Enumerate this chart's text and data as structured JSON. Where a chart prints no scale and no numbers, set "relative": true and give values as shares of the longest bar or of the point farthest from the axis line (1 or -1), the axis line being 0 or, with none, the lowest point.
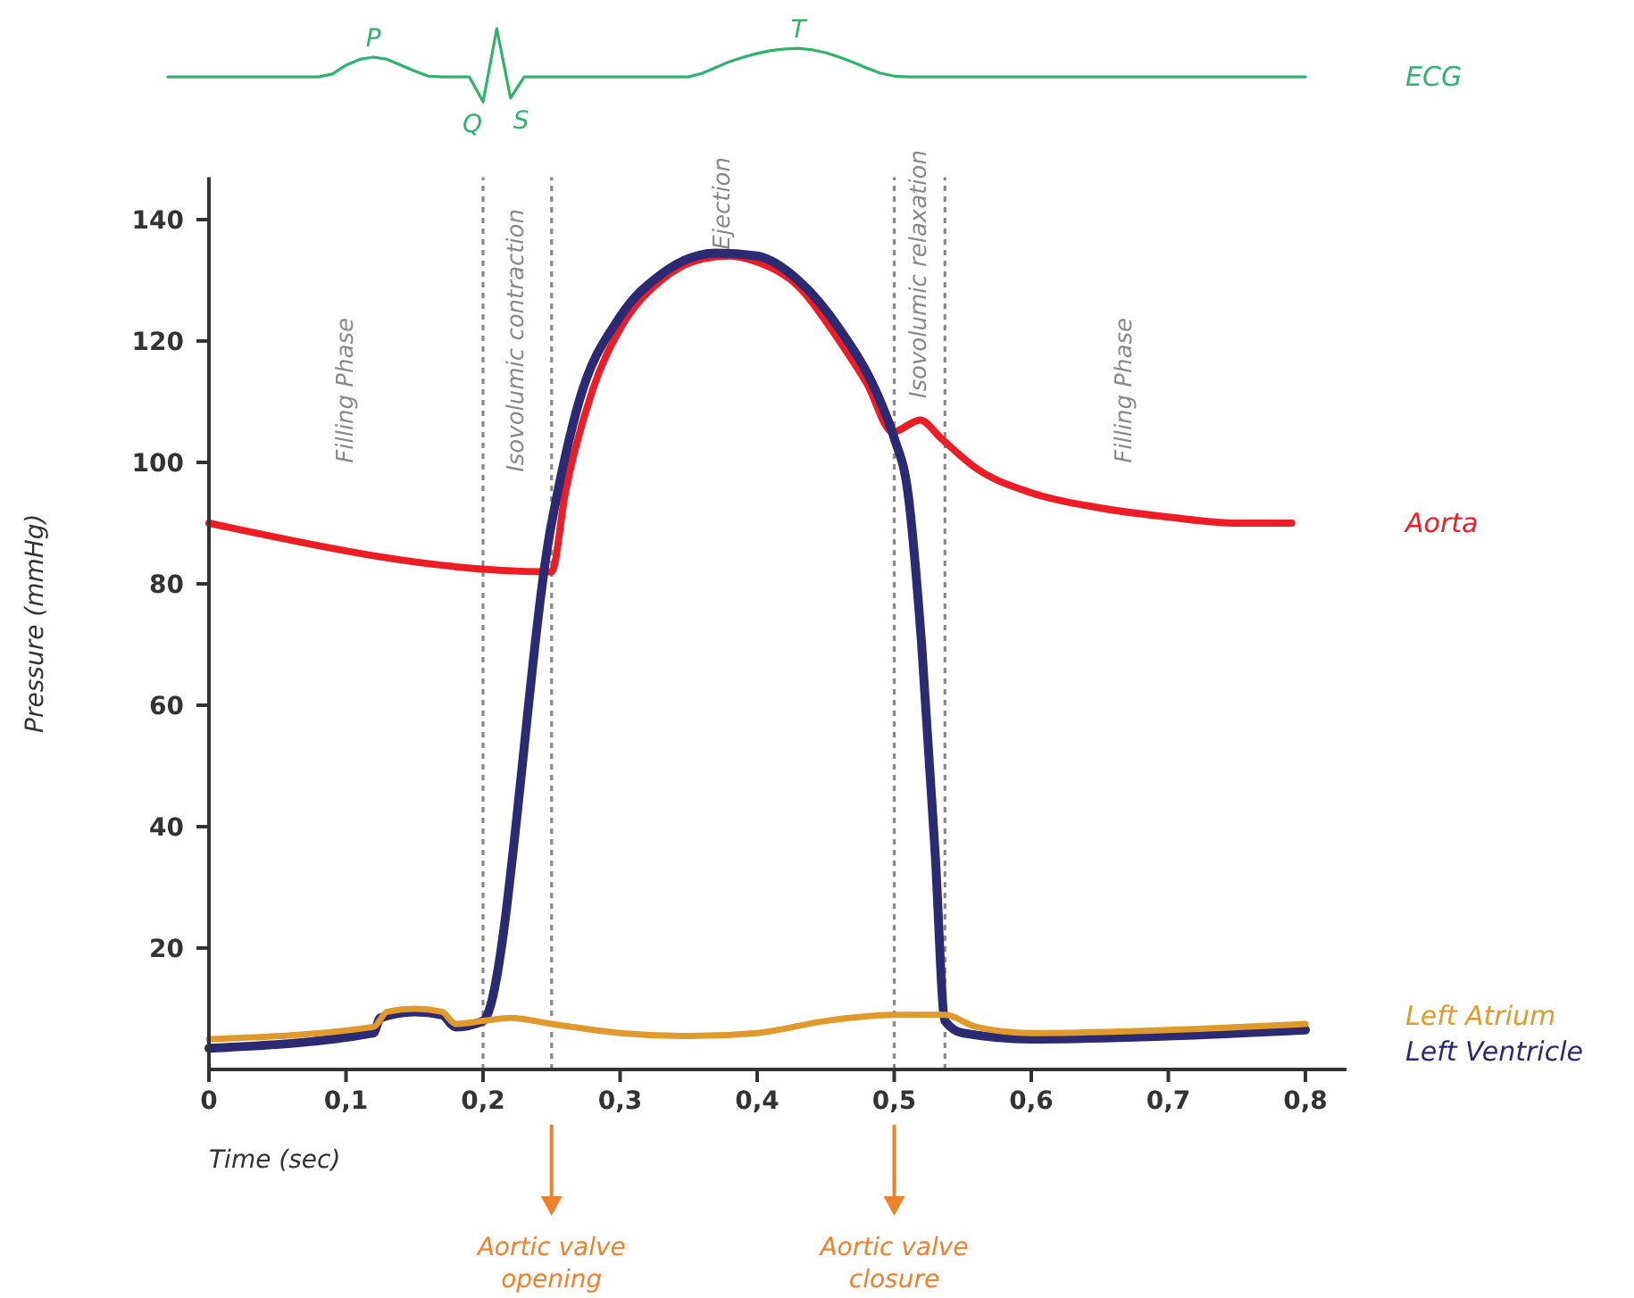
{
  "chart_data": [
    {
      "type": "line",
      "xlabel": "Time (sec)",
      "ylabel": "Pressure (mmHg)",
      "xlim": [
        0,
        0.83
      ],
      "ylim": [
        0,
        147
      ],
      "xticks": [
        0,
        {
          "value": 0.1,
          "label": "0,1"
        },
        {
          "value": 0.2,
          "label": "0,2"
        },
        {
          "value": 0.3,
          "label": "0,3"
        },
        {
          "value": 0.4,
          "label": "0,4"
        },
        {
          "value": 0.5,
          "label": "0,5"
        },
        {
          "value": 0.6,
          "label": "0,6"
        },
        {
          "value": 0.7,
          "label": "0,7"
        },
        {
          "value": 0.8,
          "label": "0,8"
        }
      ],
      "yticks": [
        20,
        40,
        60,
        80,
        100,
        120,
        140
      ],
      "grid": false,
      "legend": false,
      "series": [
        {
          "name": "Aorta",
          "color": "#ee1c25",
          "x": [
            0,
            0.247,
            0.25,
            0.26,
            0.28,
            0.3,
            0.33,
            0.36,
            0.38,
            0.4,
            0.43,
            0.46,
            0.48,
            0.499,
            0.519,
            0.534,
            0.56,
            0.6,
            0.65,
            0.7,
            0.75,
            0.79
          ],
          "values": [
            90,
            82,
            82,
            95,
            112,
            122,
            130,
            133.5,
            134,
            133,
            129,
            120,
            113,
            105,
            107,
            104,
            99,
            95,
            92.5,
            91,
            90,
            90
          ]
        },
        {
          "name": "Left Ventricle",
          "color": "#2b2a72",
          "x": [
            0,
            0.12,
            0.125,
            0.15,
            0.17,
            0.18,
            0.2,
            0.25,
            0.27,
            0.3,
            0.33,
            0.37,
            0.4,
            0.43,
            0.46,
            0.49,
            0.5,
            0.51,
            0.52,
            0.53,
            0.537,
            0.55,
            0.6,
            0.7,
            0.8
          ],
          "values": [
            3.5,
            6,
            8.5,
            9.5,
            9,
            7,
            8,
            90,
            110,
            124,
            131,
            134.5,
            134,
            130,
            122,
            110,
            104,
            95,
            70,
            35,
            8,
            6,
            5,
            5.5,
            6.5
          ]
        },
        {
          "name": "Left Atrium",
          "color": "#e09a2c",
          "x": [
            0,
            0.12,
            0.13,
            0.15,
            0.17,
            0.18,
            0.2,
            0.22,
            0.25,
            0.3,
            0.35,
            0.4,
            0.45,
            0.5,
            0.537,
            0.56,
            0.6,
            0.7,
            0.8
          ],
          "values": [
            5,
            7,
            9.5,
            10,
            9.5,
            7.5,
            8,
            8.5,
            7.5,
            6,
            5.5,
            6,
            8,
            9,
            9,
            7,
            6,
            6.5,
            7.5
          ]
        }
      ],
      "ref_lines": [
        {
          "axis": "x",
          "value": 0.2,
          "color": "#888888",
          "line_style": "dotted"
        },
        {
          "axis": "x",
          "value": 0.25,
          "color": "#888888",
          "line_style": "dotted"
        },
        {
          "axis": "x",
          "value": 0.5,
          "color": "#888888",
          "line_style": "dotted"
        },
        {
          "axis": "x",
          "value": 0.537,
          "color": "#888888",
          "line_style": "dotted"
        }
      ],
      "annotations": [
        "Filling Phase",
        "Isovolumic contraction",
        "Ejection",
        "Isovolumic relaxation",
        "Filling Phase",
        "Aortic valve opening",
        "Aortic valve closure"
      ]
    },
    {
      "type": "line",
      "relative": true,
      "legend": false,
      "categories": [
        null,
        null,
        null,
        null,
        null,
        null,
        null,
        null,
        null,
        null,
        null,
        null,
        null,
        null,
        null,
        null,
        null,
        null,
        null,
        null,
        null,
        null,
        null,
        null,
        null,
        null,
        null,
        null,
        null,
        null,
        null,
        null,
        null,
        null,
        null,
        null,
        null,
        null,
        null,
        null,
        null,
        null,
        null,
        null,
        null,
        null,
        null,
        null,
        null,
        null,
        null,
        null,
        null,
        null,
        null,
        null,
        null,
        null,
        null,
        null,
        null,
        null,
        null,
        null,
        null,
        null,
        null,
        null,
        null,
        null,
        null,
        null,
        null,
        null,
        null,
        null,
        null,
        null,
        null,
        null,
        null,
        null,
        null,
        null
      ],
      "series": [
        {
          "name": "ECG",
          "color": "#2db36b",
          "values": [
            0.34,
            0.34,
            0.34,
            0.34,
            0.34,
            0.34,
            0.34,
            0.34,
            0.34,
            0.34,
            0.34,
            0.34,
            0.38,
            0.5,
            0.58,
            0.61,
            0.58,
            0.5,
            0.42,
            0.35,
            0.34,
            0.34,
            0.34,
            0,
            1,
            0.05,
            0.34,
            0.34,
            0.34,
            0.34,
            0.34,
            0.34,
            0.34,
            0.34,
            0.34,
            0.34,
            0.34,
            0.34,
            0.34,
            0.39,
            0.47,
            0.55,
            0.61,
            0.66,
            0.7,
            0.72,
            0.73,
            0.71,
            0.67,
            0.61,
            0.54,
            0.46,
            0.39,
            0.35,
            0.34,
            0.34,
            0.34,
            0.34,
            0.34,
            0.34,
            0.34,
            0.34,
            0.34,
            0.34,
            0.34,
            0.34,
            0.34,
            0.34,
            0.34,
            0.34,
            0.34,
            0.34,
            0.34,
            0.34,
            0.34,
            0.34,
            0.34,
            0.34,
            0.34,
            0.34,
            0.34,
            0.34,
            0.34,
            0.34
          ]
        }
      ],
      "annotations": [
        "P",
        "Q",
        "S",
        "T"
      ]
    }
  ]
}
